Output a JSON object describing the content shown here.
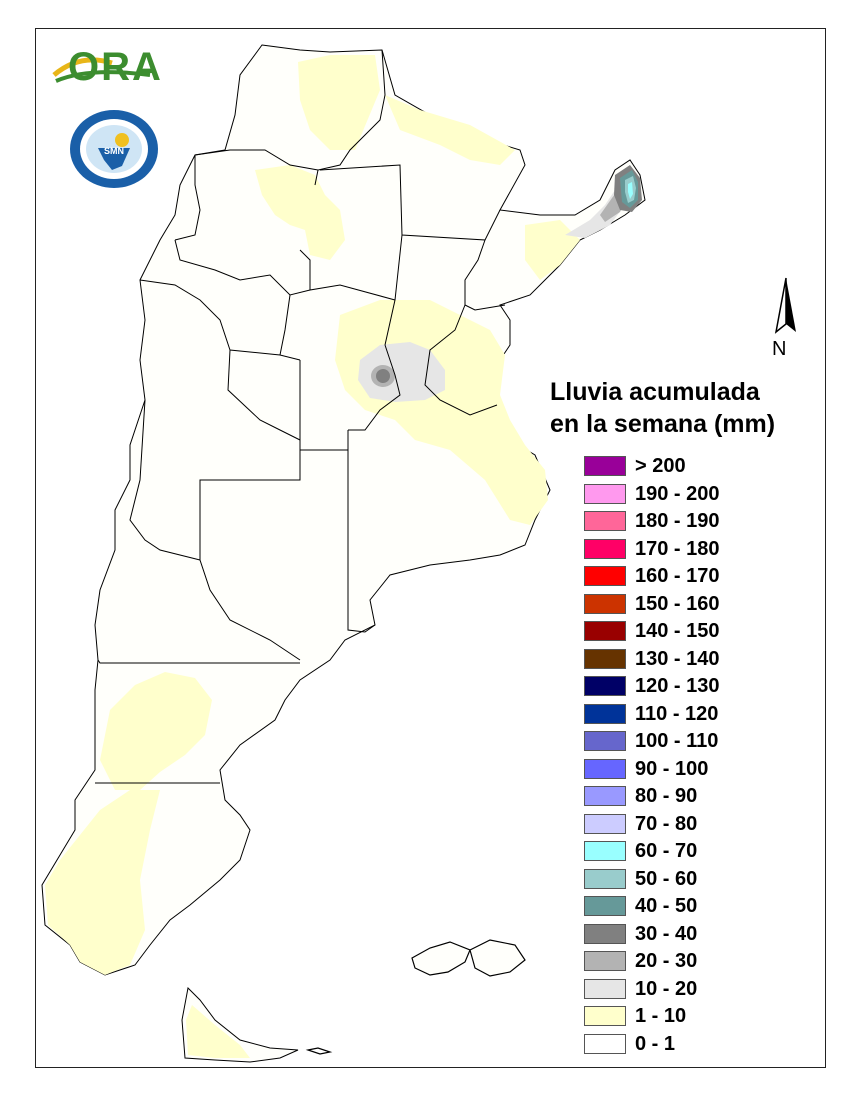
{
  "legend": {
    "title_line1": "Lluvia acumulada",
    "title_line2": "en la semana (mm)",
    "items": [
      {
        "label": "> 200",
        "color": "#990099"
      },
      {
        "label": "190 - 200",
        "color": "#ff99ee"
      },
      {
        "label": "180 - 190",
        "color": "#ff6699"
      },
      {
        "label": "170 - 180",
        "color": "#ff0066"
      },
      {
        "label": "160 - 170",
        "color": "#ff0000"
      },
      {
        "label": "150 - 160",
        "color": "#cc3300"
      },
      {
        "label": "140 - 150",
        "color": "#990000"
      },
      {
        "label": "130 - 140",
        "color": "#663300"
      },
      {
        "label": "120 - 130",
        "color": "#000066"
      },
      {
        "label": "110 - 120",
        "color": "#003399"
      },
      {
        "label": "100 - 110",
        "color": "#6666cc"
      },
      {
        "label": "90 - 100",
        "color": "#6666ff"
      },
      {
        "label": "80 - 90",
        "color": "#9999ff"
      },
      {
        "label": "70 - 80",
        "color": "#ccccff"
      },
      {
        "label": "60 - 70",
        "color": "#99ffff"
      },
      {
        "label": "50 - 60",
        "color": "#99cccc"
      },
      {
        "label": "40 - 50",
        "color": "#669999"
      },
      {
        "label": "30 - 40",
        "color": "#808080"
      },
      {
        "label": "20 - 30",
        "color": "#b3b3b3"
      },
      {
        "label": "10 - 20",
        "color": "#e6e6e6"
      },
      {
        "label": "1 - 10",
        "color": "#ffffcc"
      },
      {
        "label": "0 - 1",
        "color": "#ffffff"
      }
    ]
  },
  "compass": {
    "label": "N"
  },
  "logos": {
    "ora": "ORA",
    "smn": "SMN"
  },
  "colors": {
    "background": "#ffffff",
    "border": "#222222",
    "province_line": "#000000",
    "rain_1_10": "#ffffcc",
    "rain_10_20": "#e6e6e6",
    "rain_20_30": "#b3b3b3",
    "rain_30_40": "#808080",
    "rain_40_50": "#669999",
    "rain_50_60": "#99cccc",
    "rain_60_70": "#99ffff"
  }
}
